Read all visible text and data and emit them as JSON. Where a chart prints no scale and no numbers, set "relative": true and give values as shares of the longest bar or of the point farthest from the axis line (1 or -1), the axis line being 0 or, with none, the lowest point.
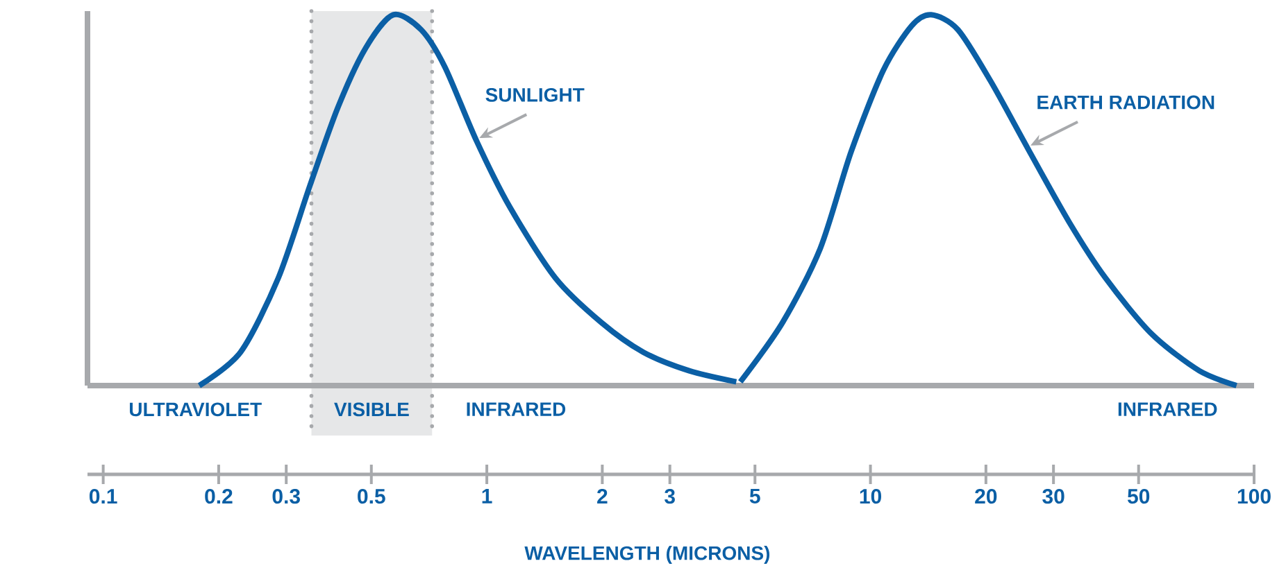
{
  "chart_data": {
    "type": "line",
    "relative": true,
    "log": "x",
    "xlabel": "WAVELENGTH (MICRONS)",
    "xlim": [
      0.091,
      100
    ],
    "xticks": [
      0.1,
      0.2,
      0.3,
      0.5,
      1,
      2,
      3,
      5,
      10,
      20,
      30,
      50,
      100
    ],
    "series": [
      {
        "name": "SUNLIGHT",
        "color": "#0b5fa5",
        "x": [
          0.178,
          0.228,
          0.286,
          0.346,
          0.409,
          0.483,
          0.57,
          0.674,
          0.777,
          0.94,
          1.15,
          1.51,
          1.99,
          2.56,
          3.37,
          4.47
        ],
        "values": [
          0,
          0.09,
          0.29,
          0.54,
          0.75,
          0.91,
          1.0,
          0.96,
          0.86,
          0.66,
          0.48,
          0.29,
          0.17,
          0.09,
          0.04,
          0.01
        ]
      },
      {
        "name": "EARTH RADIATION",
        "color": "#0b5fa5",
        "x": [
          4.58,
          5.9,
          7.4,
          8.9,
          10.8,
          12.8,
          14.4,
          16.9,
          20.6,
          25.7,
          33,
          41,
          54,
          72,
          90
        ],
        "values": [
          0.01,
          0.17,
          0.37,
          0.63,
          0.85,
          0.97,
          1.0,
          0.96,
          0.82,
          0.64,
          0.44,
          0.29,
          0.14,
          0.04,
          0
        ]
      }
    ],
    "bands": [
      {
        "axis": "x",
        "from": 0.349,
        "to": 0.72,
        "label": "VISIBLE",
        "color": "#e6e7e8"
      }
    ],
    "ref_lines": [
      {
        "axis": "x",
        "value": 0.349,
        "color": "#a7a9ac",
        "line_style": "dotted"
      },
      {
        "axis": "x",
        "value": 0.72,
        "color": "#a7a9ac",
        "line_style": "dotted"
      }
    ],
    "annotations": [
      "ULTRAVIOLET",
      "INFRARED",
      "INFRARED"
    ]
  }
}
